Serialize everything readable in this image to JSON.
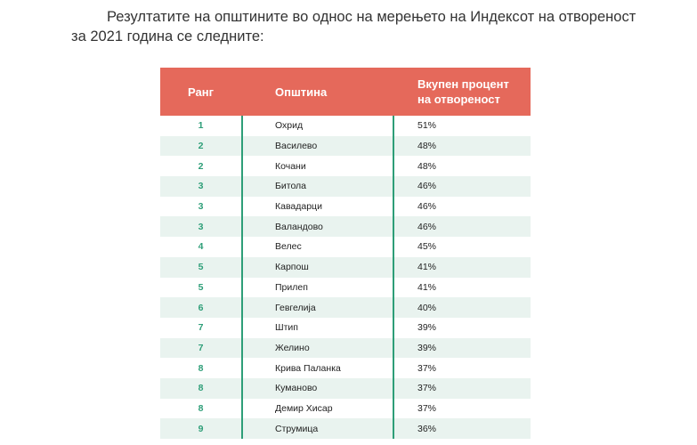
{
  "intro": {
    "line1": "Резултатите на општините во однос на мерењето на Индексот на отвореност",
    "line2": "за 2021 година се следните:"
  },
  "table": {
    "headers": {
      "rank": "Ранг",
      "municipality": "Општина",
      "percent": "Вкупен процент на отвореност"
    },
    "rows": [
      {
        "rank": "1",
        "municipality": "Охрид",
        "percent": "51%"
      },
      {
        "rank": "2",
        "municipality": "Василево",
        "percent": "48%"
      },
      {
        "rank": "2",
        "municipality": "Кочани",
        "percent": "48%"
      },
      {
        "rank": "3",
        "municipality": "Битола",
        "percent": "46%"
      },
      {
        "rank": "3",
        "municipality": "Кавадарци",
        "percent": "46%"
      },
      {
        "rank": "3",
        "municipality": "Валандово",
        "percent": "46%"
      },
      {
        "rank": "4",
        "municipality": "Велес",
        "percent": "45%"
      },
      {
        "rank": "5",
        "municipality": "Карпош",
        "percent": "41%"
      },
      {
        "rank": "5",
        "municipality": "Прилеп",
        "percent": "41%"
      },
      {
        "rank": "6",
        "municipality": "Гевгелија",
        "percent": "40%"
      },
      {
        "rank": "7",
        "municipality": "Штип",
        "percent": "39%"
      },
      {
        "rank": "7",
        "municipality": "Желино",
        "percent": "39%"
      },
      {
        "rank": "8",
        "municipality": "Крива Паланка",
        "percent": "37%"
      },
      {
        "rank": "8",
        "municipality": "Куманово",
        "percent": "37%"
      },
      {
        "rank": "8",
        "municipality": "Демир Хисар",
        "percent": "37%"
      },
      {
        "rank": "9",
        "municipality": "Струмица",
        "percent": "36%"
      }
    ]
  },
  "colors": {
    "header_bg": "#e5695b",
    "rank_text": "#2e9e78",
    "row_shade": "#e9f3ef",
    "divider": "#2e9e78"
  }
}
